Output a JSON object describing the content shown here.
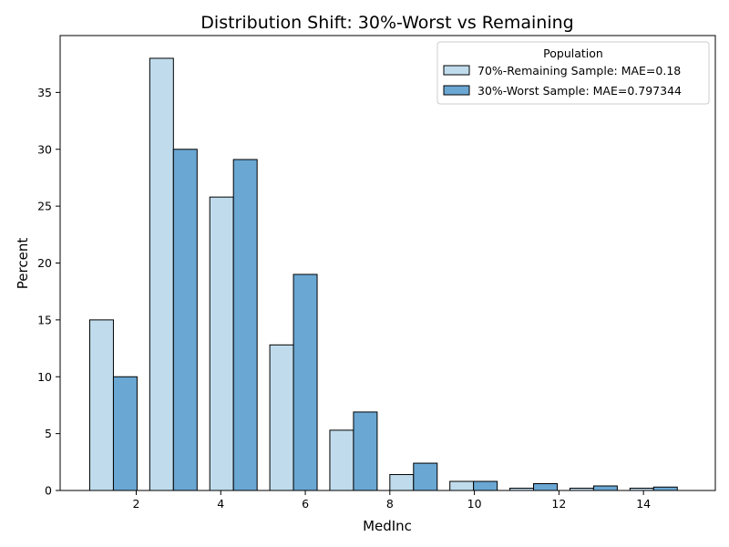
{
  "chart_data": {
    "type": "bar",
    "title": "Distribution Shift: 30%-Worst vs Remaining",
    "xlabel": "MedInc",
    "ylabel": "Percent",
    "xlim": [
      0.2,
      15.7
    ],
    "ylim": [
      0,
      40
    ],
    "xticks": [
      2,
      4,
      6,
      8,
      10,
      12,
      14
    ],
    "yticks": [
      0,
      5,
      10,
      15,
      20,
      25,
      30,
      35
    ],
    "bin_centers": [
      1.46,
      2.88,
      4.3,
      5.72,
      7.14,
      8.56,
      9.98,
      11.4,
      12.82,
      14.24
    ],
    "grid": false,
    "legend": {
      "title": "Population",
      "placement": "top-right"
    },
    "series": [
      {
        "name": "70%-Remaining Sample: MAE=0.18",
        "color": "#c0dcec",
        "values": [
          15.0,
          38.0,
          25.8,
          12.8,
          5.3,
          1.4,
          0.8,
          0.2,
          0.2,
          0.2
        ]
      },
      {
        "name": "30%-Worst Sample: MAE=0.797344",
        "color": "#6aa7d3",
        "values": [
          10.0,
          30.0,
          29.1,
          19.0,
          6.9,
          2.4,
          0.8,
          0.6,
          0.4,
          0.3
        ]
      }
    ]
  }
}
